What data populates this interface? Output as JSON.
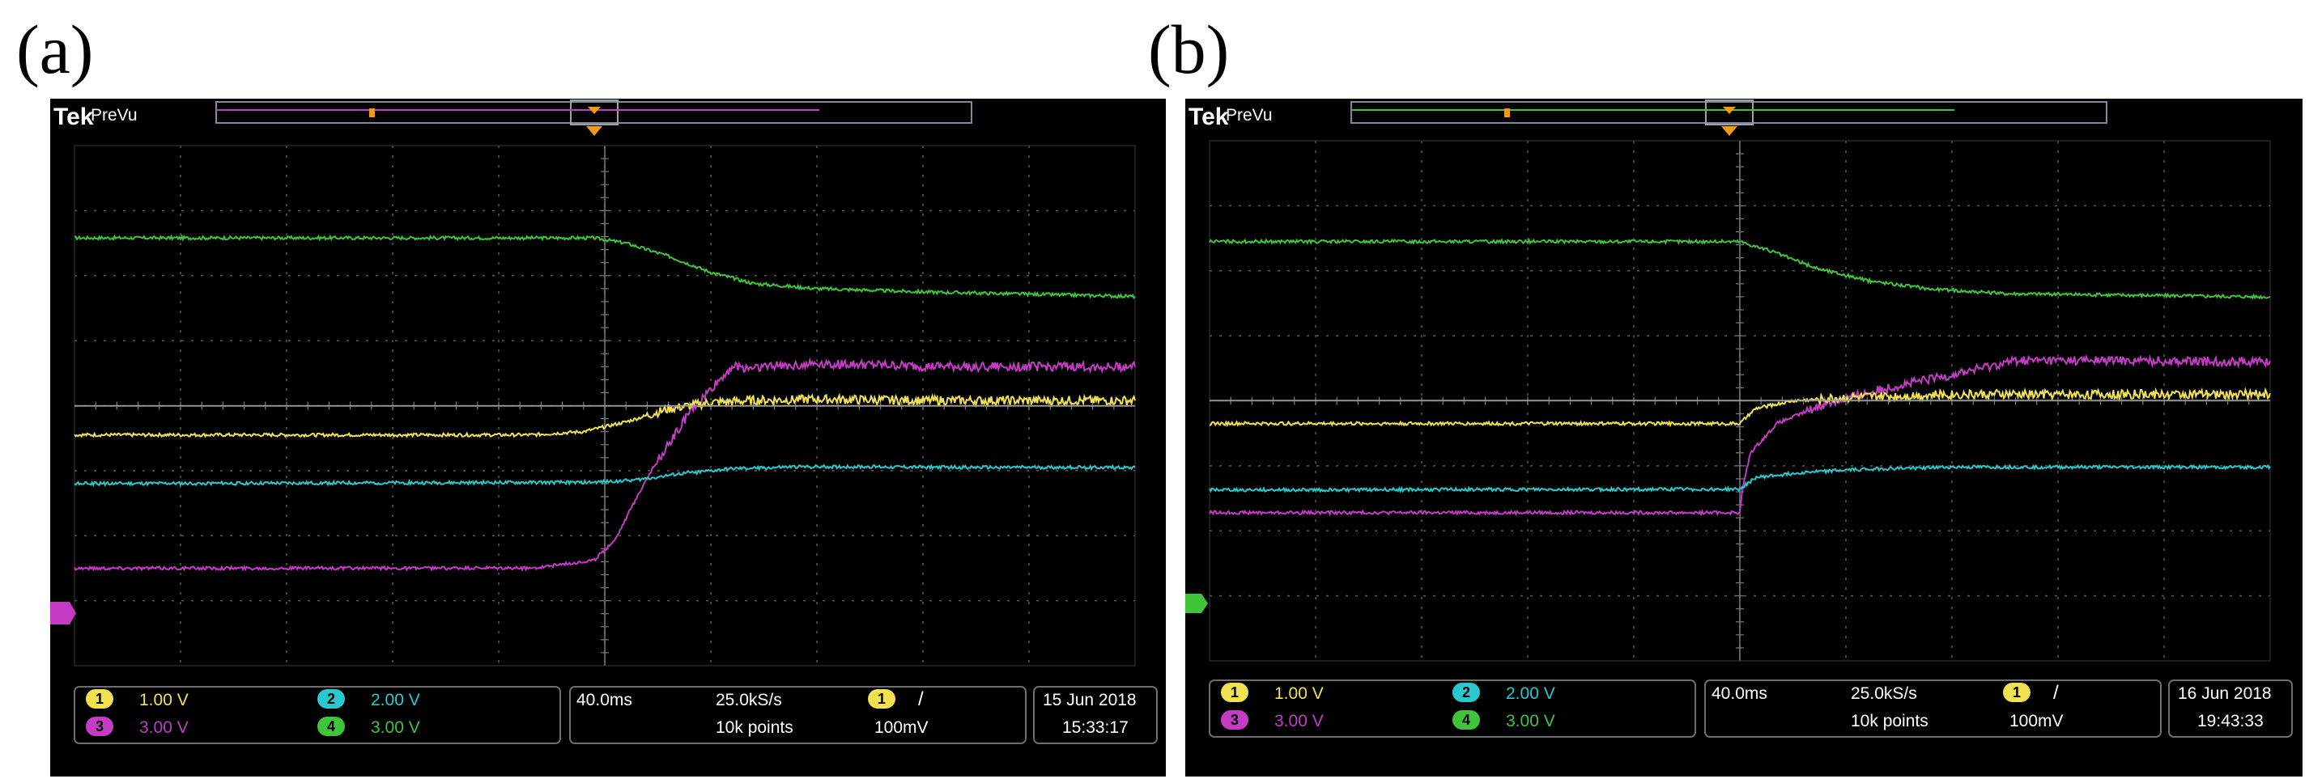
{
  "colors": {
    "ch1": "#f2e250",
    "ch2": "#27c9cf",
    "ch3": "#c43bc4",
    "ch4": "#3fc43a",
    "grid": "#5b5b5b",
    "screen": "#000000",
    "box": "#6d6d6d"
  },
  "panels": [
    {
      "label": "(a)",
      "brand": "Tek",
      "mode": "PreVu",
      "channels": [
        {
          "id": "1",
          "scale": "1.00 V",
          "color": "#f2e250"
        },
        {
          "id": "2",
          "scale": "2.00 V",
          "color": "#27c9cf"
        },
        {
          "id": "3",
          "scale": "3.00 V",
          "color": "#c43bc4"
        },
        {
          "id": "4",
          "scale": "3.00 V",
          "color": "#3fc43a"
        }
      ],
      "timebase": "40.0ms",
      "sample_rate": "25.0kS/s",
      "record_length": "10k points",
      "trigger": {
        "channel": "1",
        "slope": "/",
        "level": "100mV"
      },
      "date": "15 Jun 2018",
      "time": "15:33:17"
    },
    {
      "label": "(b)",
      "brand": "Tek",
      "mode": "PreVu",
      "channels": [
        {
          "id": "1",
          "scale": "1.00 V",
          "color": "#f2e250"
        },
        {
          "id": "2",
          "scale": "2.00 V",
          "color": "#27c9cf"
        },
        {
          "id": "3",
          "scale": "3.00 V",
          "color": "#c43bc4"
        },
        {
          "id": "4",
          "scale": "3.00 V",
          "color": "#3fc43a"
        }
      ],
      "timebase": "40.0ms",
      "sample_rate": "25.0kS/s",
      "record_length": "10k points",
      "trigger": {
        "channel": "1",
        "slope": "/",
        "level": "100mV"
      },
      "date": "16 Jun 2018",
      "time": "19:43:33"
    }
  ],
  "chart_data": [
    {
      "type": "line",
      "title": "(a)",
      "x_units": "div",
      "y_units": "div",
      "xlim": [
        0,
        10
      ],
      "ylim": [
        0,
        8
      ],
      "grid": true,
      "series": [
        {
          "name": "4",
          "color": "#3fc43a",
          "x": [
            0,
            4.9,
            5.2,
            5.6,
            6.0,
            6.4,
            7.0,
            8.0,
            10
          ],
          "y": [
            6.58,
            6.58,
            6.5,
            6.3,
            6.05,
            5.88,
            5.8,
            5.75,
            5.68
          ]
        },
        {
          "name": "3",
          "color": "#c43bc4",
          "x": [
            0,
            4.3,
            4.9,
            5.1,
            5.4,
            5.8,
            6.2,
            6.3,
            7.0,
            8.0,
            10
          ],
          "y": [
            1.5,
            1.5,
            1.62,
            1.95,
            2.9,
            3.9,
            4.6,
            4.58,
            4.65,
            4.6,
            4.6
          ]
        },
        {
          "name": "1",
          "color": "#f2e250",
          "x": [
            0,
            4.3,
            4.8,
            5.2,
            5.6,
            6.0,
            6.4,
            7.0,
            8.0,
            10
          ],
          "y": [
            3.55,
            3.55,
            3.6,
            3.75,
            3.95,
            4.05,
            4.08,
            4.1,
            4.08,
            4.08
          ]
        },
        {
          "name": "2",
          "color": "#27c9cf",
          "x": [
            0,
            4.9,
            5.3,
            5.7,
            6.2,
            6.8,
            7.5,
            8.5,
            10
          ],
          "y": [
            2.8,
            2.82,
            2.86,
            2.95,
            3.03,
            3.06,
            3.06,
            3.05,
            3.05
          ]
        }
      ]
    },
    {
      "type": "line",
      "title": "(b)",
      "x_units": "div",
      "y_units": "div",
      "xlim": [
        0,
        10
      ],
      "ylim": [
        0,
        8
      ],
      "grid": true,
      "series": [
        {
          "name": "4",
          "color": "#3fc43a",
          "x": [
            0,
            5.0,
            5.3,
            5.7,
            6.2,
            6.8,
            7.5,
            8.5,
            10
          ],
          "y": [
            6.45,
            6.45,
            6.3,
            6.05,
            5.85,
            5.72,
            5.65,
            5.63,
            5.6
          ]
        },
        {
          "name": "3",
          "color": "#c43bc4",
          "x": [
            0,
            5.0,
            5.02,
            5.1,
            5.35,
            5.8,
            6.4,
            7.0,
            7.6,
            8.5,
            10
          ],
          "y": [
            2.28,
            2.28,
            2.6,
            3.2,
            3.65,
            3.95,
            4.2,
            4.4,
            4.62,
            4.62,
            4.6
          ]
        },
        {
          "name": "1",
          "color": "#f2e250",
          "x": [
            0,
            5.0,
            5.15,
            5.5,
            6.0,
            6.6,
            7.0,
            8.0,
            10
          ],
          "y": [
            3.65,
            3.65,
            3.88,
            4.0,
            4.05,
            4.08,
            4.1,
            4.1,
            4.1
          ]
        },
        {
          "name": "2",
          "color": "#27c9cf",
          "x": [
            0,
            5.0,
            5.15,
            5.6,
            6.2,
            7.0,
            8.0,
            10
          ],
          "y": [
            2.63,
            2.64,
            2.82,
            2.9,
            2.95,
            2.98,
            2.98,
            2.98
          ]
        }
      ]
    }
  ]
}
